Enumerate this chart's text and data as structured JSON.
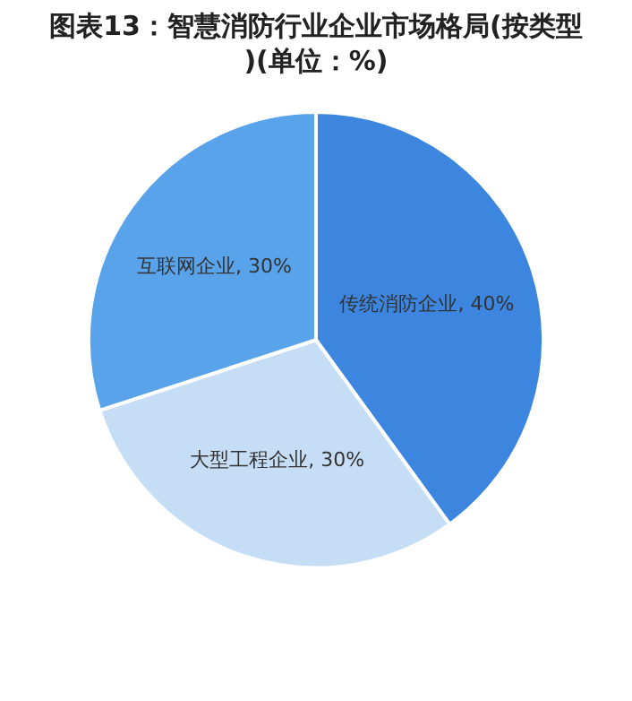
{
  "chart_data": {
    "type": "pie",
    "title": "图表13：智慧消防行业企业市场格局(按类型)(单位：%)",
    "categories": [
      "传统消防企业",
      "大型工程企业",
      "互联网企业"
    ],
    "values": [
      40,
      30,
      30
    ],
    "colors": [
      "#3d86e0",
      "#c6ddf6",
      "#59a3ea"
    ],
    "value_labels": [
      "40%",
      "30%",
      "30%"
    ],
    "legend": false
  }
}
